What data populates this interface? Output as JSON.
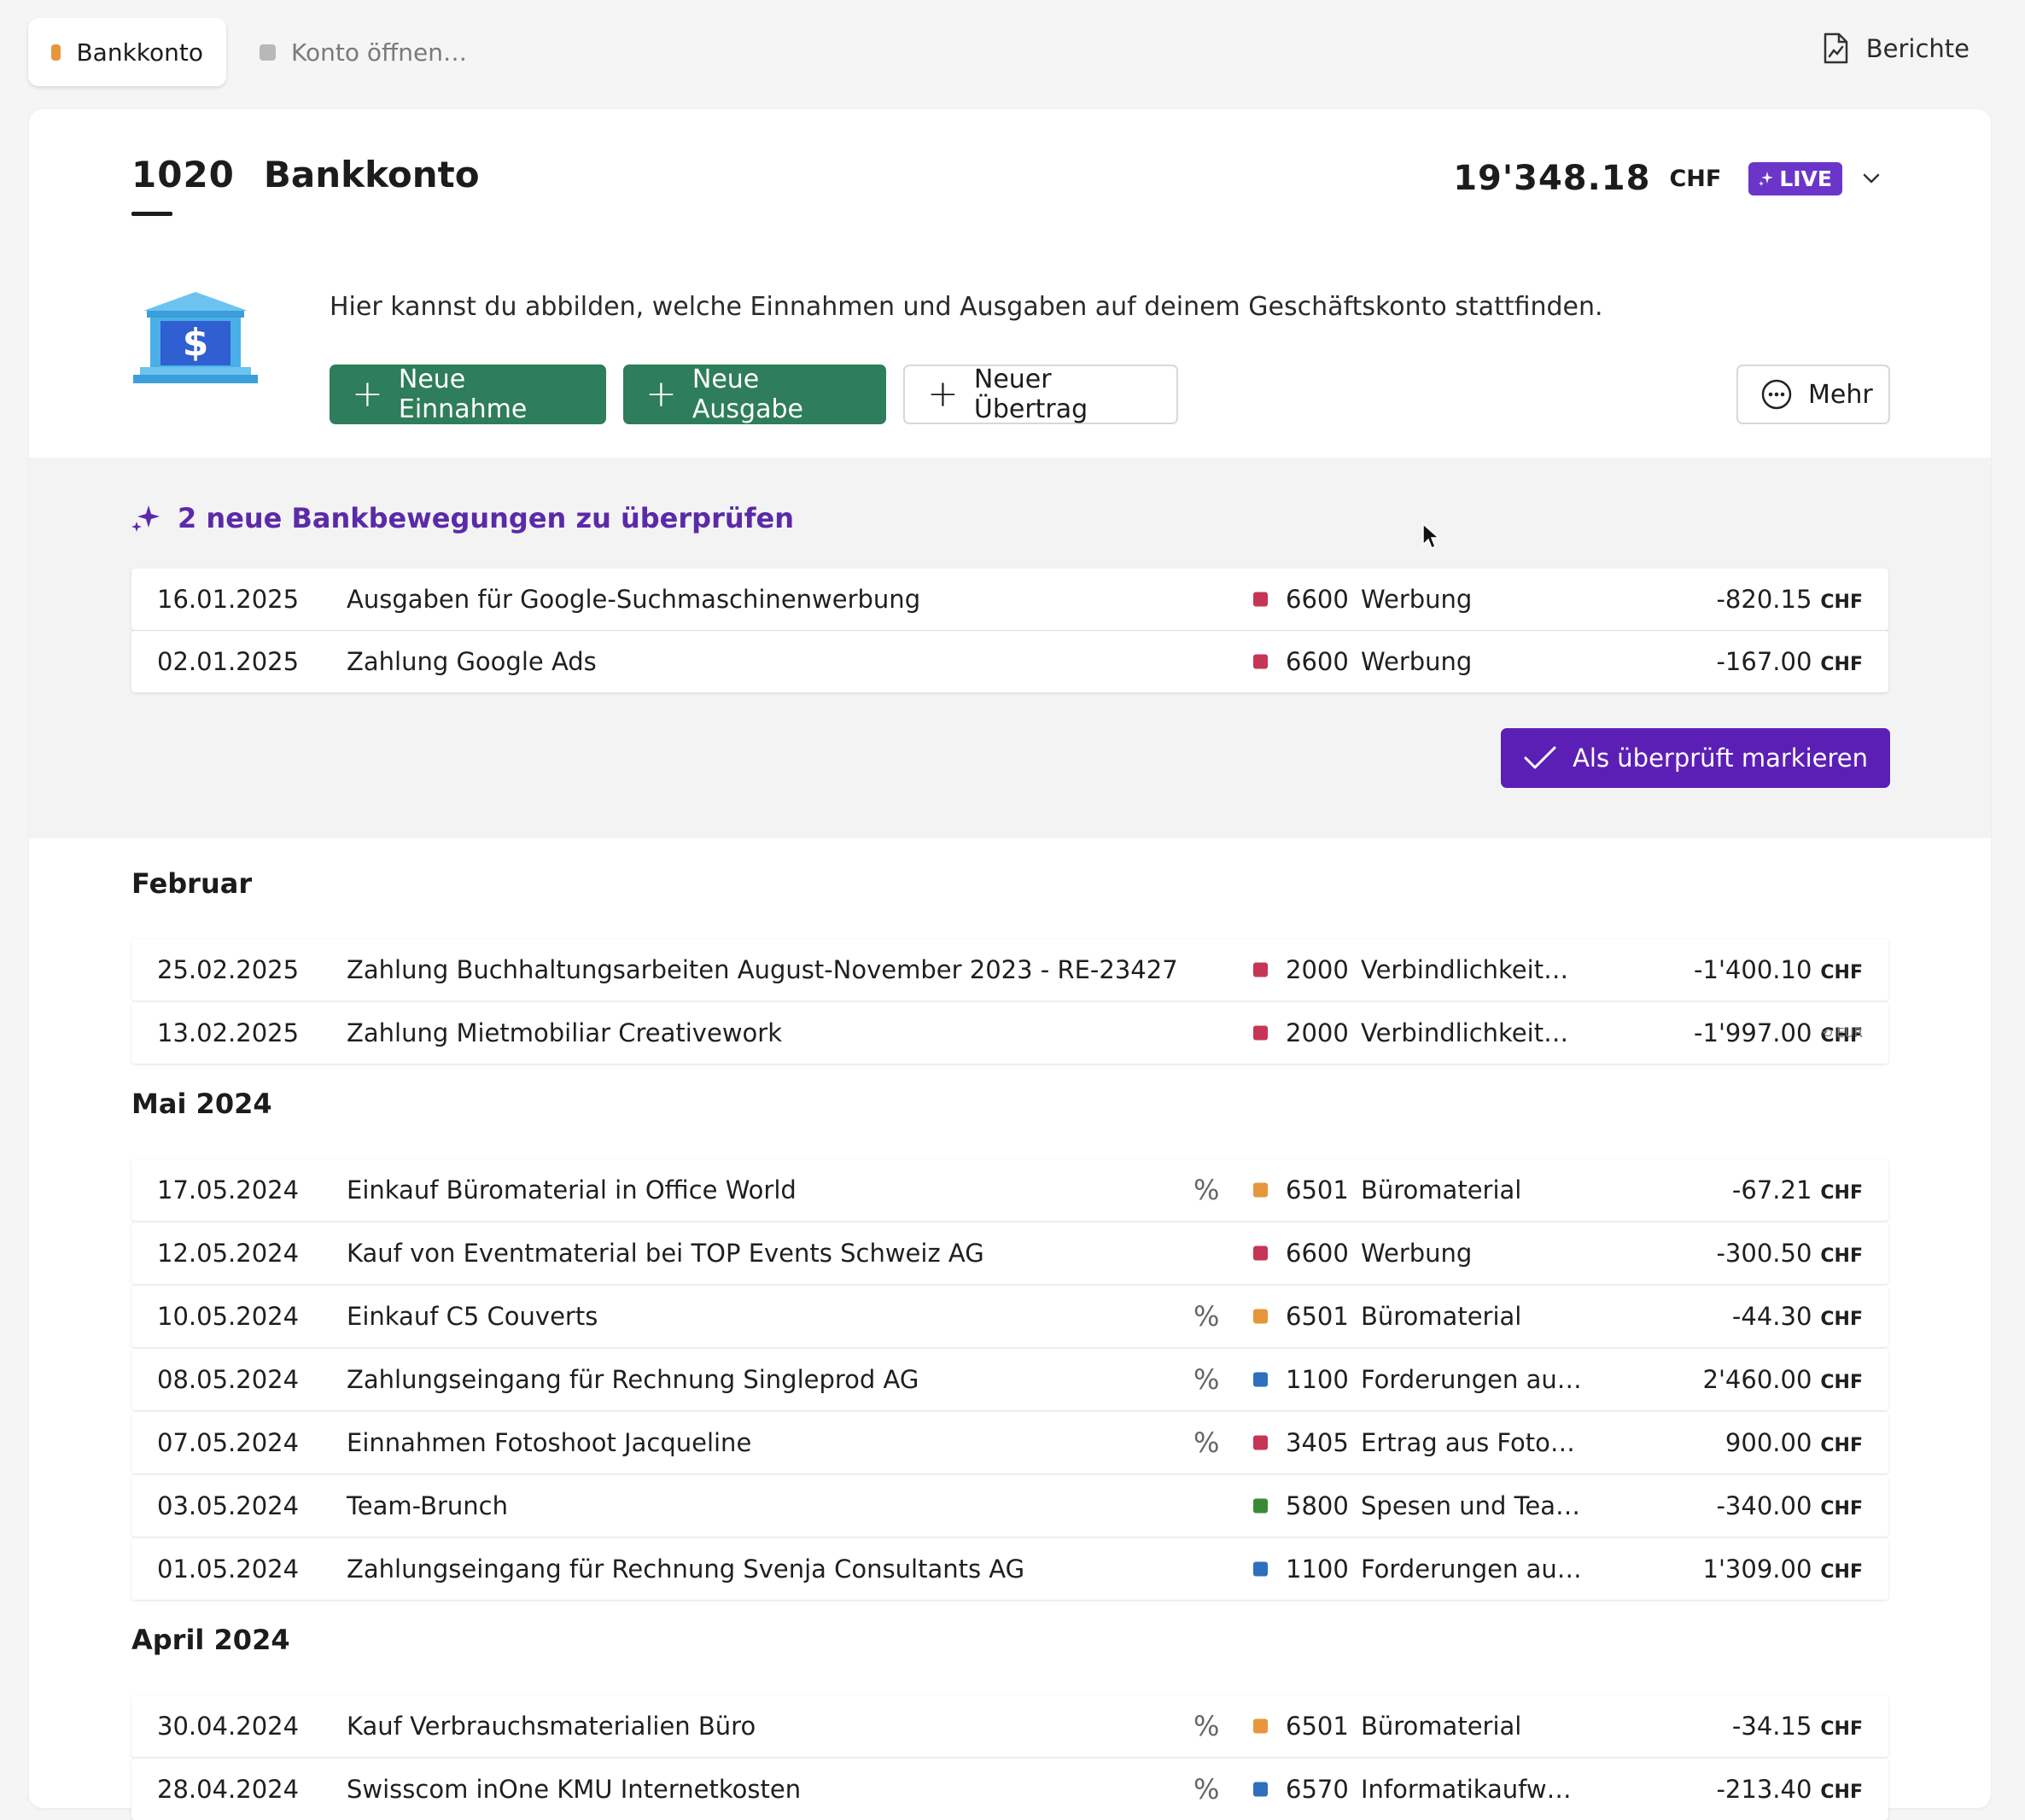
{
  "tabs": [
    {
      "label": "Bankkonto",
      "color": "#e8963b"
    },
    {
      "label": "Konto öffnen…",
      "color": "#b8b8b8"
    }
  ],
  "reports_label": "Berichte",
  "account": {
    "number": "1020",
    "name": "Bankkonto",
    "balance": "19'348.18",
    "currency": "CHF",
    "live_label": "LIVE"
  },
  "intro_text": "Hier kannst du abbilden, welche Einnahmen und Ausgaben auf deinem Geschäftskonto stattfinden.",
  "actions": {
    "new_income": "Neue Einnahme",
    "new_expense": "Neue Ausgabe",
    "new_transfer": "Neuer Übertrag",
    "more": "Mehr"
  },
  "review": {
    "title": "2 neue Bankbewegungen zu überprüfen",
    "mark_button": "Als überprüft markieren",
    "rows": [
      {
        "date": "16.01.2025",
        "desc": "Ausgaben für Google-Suchmaschinenwerbung",
        "pct": "",
        "color": "#c73556",
        "code": "6600",
        "cat": "Werbung",
        "amount": "-820.15",
        "cur": "CHF"
      },
      {
        "date": "02.01.2025",
        "desc": "Zahlung Google Ads",
        "pct": "",
        "color": "#c73556",
        "code": "6600",
        "cat": "Werbung",
        "amount": "-167.00",
        "cur": "CHF"
      }
    ]
  },
  "months": [
    {
      "label": "Februar",
      "rows": [
        {
          "date": "25.02.2025",
          "desc": "Zahlung Buchhaltungsarbeiten August-November 2023 - RE-23427",
          "pct": "",
          "color": "#c73556",
          "code": "2000",
          "cat": "Verbindlichkeit…",
          "amount": "-1'400.10",
          "cur": "CHF"
        },
        {
          "date": "13.02.2025",
          "desc": "Zahlung Mietmobiliar Creativework",
          "pct": "",
          "color": "#c73556",
          "code": "2000",
          "cat": "Verbindlichkeit…",
          "amount": "-1'997.00",
          "cur": "CHF",
          "sub": "⟲ EUR"
        }
      ]
    },
    {
      "label": "Mai 2024",
      "rows": [
        {
          "date": "17.05.2024",
          "desc": "Einkauf Büromaterial in Office World",
          "pct": "%",
          "color": "#e8963b",
          "code": "6501",
          "cat": "Büromaterial",
          "amount": "-67.21",
          "cur": "CHF"
        },
        {
          "date": "12.05.2024",
          "desc": "Kauf von Eventmaterial bei TOP Events Schweiz AG",
          "pct": "",
          "color": "#c73556",
          "code": "6600",
          "cat": "Werbung",
          "amount": "-300.50",
          "cur": "CHF"
        },
        {
          "date": "10.05.2024",
          "desc": "Einkauf C5 Couverts",
          "pct": "%",
          "color": "#e8963b",
          "code": "6501",
          "cat": "Büromaterial",
          "amount": "-44.30",
          "cur": "CHF"
        },
        {
          "date": "08.05.2024",
          "desc": "Zahlungseingang für Rechnung Singleprod AG",
          "pct": "%",
          "color": "#2f6fbd",
          "code": "1100",
          "cat": "Forderungen au…",
          "amount": "2'460.00",
          "cur": "CHF"
        },
        {
          "date": "07.05.2024",
          "desc": "Einnahmen Fotoshoot Jacqueline",
          "pct": "%",
          "color": "#c73556",
          "code": "3405",
          "cat": "Ertrag aus Foto…",
          "amount": "900.00",
          "cur": "CHF"
        },
        {
          "date": "03.05.2024",
          "desc": "Team-Brunch",
          "pct": "",
          "color": "#3a8a34",
          "code": "5800",
          "cat": "Spesen und Tea…",
          "amount": "-340.00",
          "cur": "CHF"
        },
        {
          "date": "01.05.2024",
          "desc": "Zahlungseingang für Rechnung Svenja Consultants AG",
          "pct": "",
          "color": "#2f6fbd",
          "code": "1100",
          "cat": "Forderungen au…",
          "amount": "1'309.00",
          "cur": "CHF"
        }
      ]
    },
    {
      "label": "April 2024",
      "rows": [
        {
          "date": "30.04.2024",
          "desc": "Kauf Verbrauchsmaterialien Büro",
          "pct": "%",
          "color": "#e8963b",
          "code": "6501",
          "cat": "Büromaterial",
          "amount": "-34.15",
          "cur": "CHF"
        },
        {
          "date": "28.04.2024",
          "desc": "Swisscom inOne KMU Internetkosten",
          "pct": "%",
          "color": "#2f6fbd",
          "code": "6570",
          "cat": "Informatikaufw…",
          "amount": "-213.40",
          "cur": "CHF"
        }
      ]
    }
  ]
}
